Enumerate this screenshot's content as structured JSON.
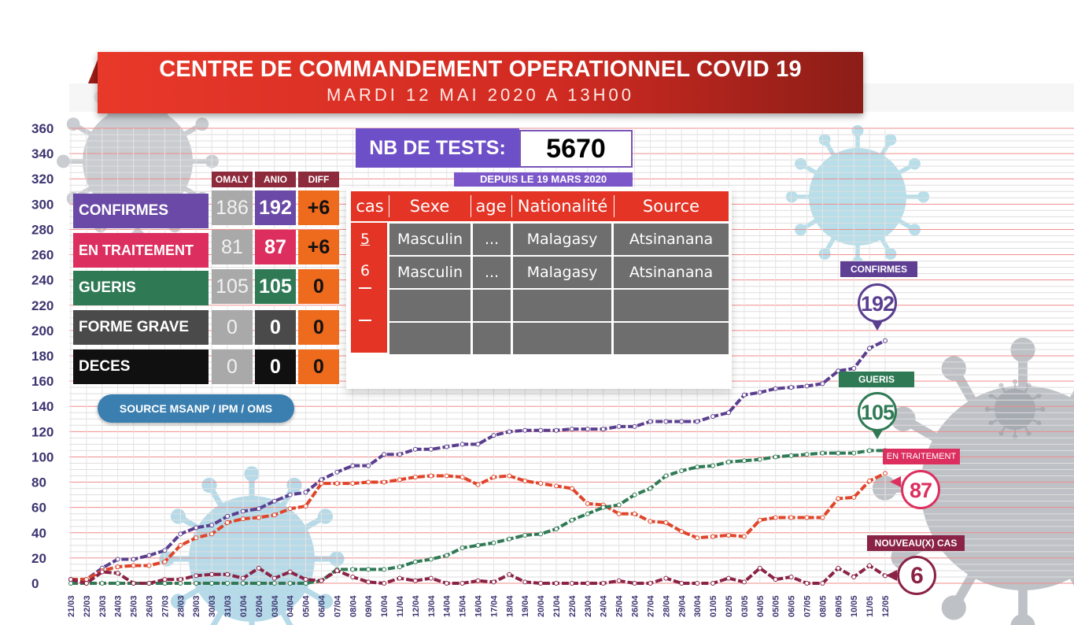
{
  "header": {
    "title": "CENTRE DE COMMANDEMENT OPERATIONNEL COVID 19",
    "subtitle": "MARDI 12 MAI 2020 A 13H00"
  },
  "tests": {
    "label": "NB DE TESTS:",
    "value": "5670",
    "since": "DEPUIS LE 19 MARS 2020"
  },
  "summary": {
    "columns": [
      "OMALY",
      "ANIO",
      "DIFF"
    ],
    "rows": [
      {
        "label": "CONFIRMES",
        "omaly": "186",
        "anio": "192",
        "diff": "+6",
        "color": "#6a4aa6"
      },
      {
        "label": "EN TRAITEMENT",
        "omaly": "81",
        "anio": "87",
        "diff": "+6",
        "color": "#dc2f5f"
      },
      {
        "label": "GUERIS",
        "omaly": "105",
        "anio": "105",
        "diff": "0",
        "color": "#2f7a55"
      },
      {
        "label": "FORME GRAVE",
        "omaly": "0",
        "anio": "0",
        "diff": "0",
        "color": "#4a4a4a"
      },
      {
        "label": "DECES",
        "omaly": "0",
        "anio": "0",
        "diff": "0",
        "color": "#101010"
      }
    ],
    "source": "SOURCE MSANP / IPM / OMS"
  },
  "cases_table": {
    "headers": [
      "cas",
      "Sexe",
      "age",
      "Nationalité",
      "Source"
    ],
    "case_numbers": [
      "5",
      "6"
    ],
    "rows": [
      [
        "Masculin",
        "...",
        "Malagasy",
        "Atsinanana"
      ],
      [
        "Masculin",
        "...",
        "Malagasy",
        "Atsinanana"
      ],
      [
        "",
        "",
        "",
        ""
      ],
      [
        "",
        "",
        "",
        ""
      ]
    ]
  },
  "callouts": {
    "confirmes": {
      "label": "CONFIRMES",
      "value": "192"
    },
    "gueris": {
      "label": "GUERIS",
      "value": "105"
    },
    "traitement": {
      "label": "EN TRAITEMENT",
      "value": "87"
    },
    "nouveaux": {
      "label": "NOUVEAU(X) CAS",
      "value": "6"
    }
  },
  "chart_data": {
    "type": "line",
    "title": "",
    "xlabel": "",
    "ylabel": "",
    "ylim": [
      0,
      360
    ],
    "yticks": [
      0,
      20,
      40,
      60,
      80,
      100,
      120,
      140,
      160,
      180,
      200,
      220,
      240,
      260,
      280,
      300,
      320,
      340,
      360
    ],
    "grid": true,
    "x": [
      "21/03",
      "22/03",
      "23/03",
      "24/03",
      "25/03",
      "26/03",
      "27/03",
      "28/03",
      "29/03",
      "30/03",
      "31/03",
      "01/04",
      "02/04",
      "03/04",
      "04/04",
      "05/04",
      "06/04",
      "07/04",
      "08/04",
      "09/04",
      "10/04",
      "11/04",
      "12/04",
      "13/04",
      "14/04",
      "15/04",
      "16/04",
      "17/04",
      "18/04",
      "19/04",
      "20/04",
      "21/04",
      "22/04",
      "23/04",
      "24/04",
      "25/04",
      "26/04",
      "27/04",
      "28/04",
      "29/04",
      "30/04",
      "01/05",
      "02/05",
      "03/05",
      "04/05",
      "05/05",
      "06/05",
      "07/05",
      "08/05",
      "09/05",
      "10/05",
      "11/05",
      "12/05"
    ],
    "series": [
      {
        "name": "CONFIRMES",
        "color": "#5b3f8f",
        "values": [
          3,
          3,
          12,
          19,
          19,
          22,
          26,
          39,
          44,
          46,
          53,
          57,
          59,
          65,
          70,
          72,
          82,
          88,
          93,
          93,
          102,
          102,
          106,
          106,
          108,
          110,
          110,
          117,
          120,
          121,
          121,
          121,
          122,
          122,
          122,
          124,
          124,
          128,
          128,
          128,
          128,
          132,
          135,
          149,
          151,
          154,
          155,
          156,
          158,
          168,
          170,
          186,
          192
        ]
      },
      {
        "name": "EN TRAITEMENT",
        "color": "#e0452a",
        "values": [
          3,
          3,
          10,
          13,
          14,
          14,
          17,
          30,
          36,
          39,
          48,
          51,
          52,
          54,
          59,
          61,
          79,
          79,
          79,
          80,
          80,
          82,
          84,
          85,
          85,
          84,
          78,
          84,
          85,
          81,
          79,
          77,
          75,
          63,
          62,
          55,
          55,
          49,
          48,
          41,
          36,
          37,
          38,
          37,
          50,
          52,
          52,
          52,
          52,
          67,
          68,
          81,
          87
        ]
      },
      {
        "name": "GUERIS",
        "color": "#2f7a55",
        "values": [
          0,
          0,
          0,
          0,
          0,
          0,
          0,
          0,
          0,
          0,
          0,
          0,
          0,
          0,
          0,
          0,
          2,
          11,
          11,
          11,
          11,
          13,
          17,
          19,
          22,
          28,
          30,
          32,
          35,
          38,
          39,
          43,
          50,
          55,
          60,
          62,
          70,
          75,
          85,
          89,
          92,
          93,
          96,
          97,
          98,
          100,
          101,
          102,
          103,
          103,
          103,
          105,
          105
        ]
      },
      {
        "name": "NOUVEAU(X) CAS",
        "color": "#8a2346",
        "values": [
          3,
          0,
          9,
          8,
          0,
          0,
          3,
          3,
          6,
          7,
          7,
          4,
          12,
          4,
          9,
          3,
          2,
          10,
          5,
          1,
          0,
          4,
          2,
          4,
          0,
          0,
          2,
          1,
          7,
          1,
          0,
          0,
          0,
          0,
          0,
          2,
          0,
          0,
          4,
          0,
          0,
          0,
          4,
          1,
          12,
          3,
          5,
          0,
          0,
          12,
          5,
          14,
          6
        ]
      }
    ]
  }
}
